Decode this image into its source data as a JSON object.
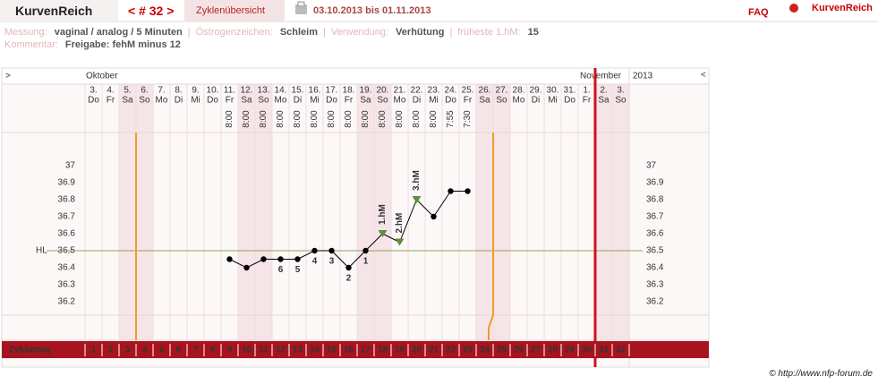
{
  "header": {
    "brand": "KurvenReich",
    "cycle_nav": "< # 32 >",
    "tab": "Zyklenübersicht",
    "date_range": "03.10.2013 bis 01.11.2013",
    "faq": "FAQ",
    "logo_text": "KurvenReich"
  },
  "info": {
    "fields": [
      {
        "label": "Messung:",
        "value": "vaginal / analog / 5 Minuten"
      },
      {
        "label": "Östrogenzeichen:",
        "value": "Schleim"
      },
      {
        "label": "Verwendung:",
        "value": "Verhütung"
      },
      {
        "label": "früheste 1.hM:",
        "value": "15"
      }
    ],
    "comment": {
      "label": "Kommentar:",
      "value": "Freigabe: fehM minus 12"
    }
  },
  "chart_data": {
    "type": "line",
    "nav_prev": ">",
    "nav_next": "<",
    "months": [
      "Oktober",
      "November"
    ],
    "year": "2013",
    "dates": [
      "3.",
      "4.",
      "5.",
      "6.",
      "7.",
      "8.",
      "9.",
      "10.",
      "11.",
      "12.",
      "13.",
      "14.",
      "15.",
      "16.",
      "17.",
      "18.",
      "19.",
      "20.",
      "21.",
      "22.",
      "23.",
      "24.",
      "25.",
      "26.",
      "27.",
      "28.",
      "29.",
      "30.",
      "31.",
      "1.",
      "2.",
      "3."
    ],
    "weekdays": [
      "Do",
      "Fr",
      "Sa",
      "So",
      "Mo",
      "Di",
      "Mi",
      "Do",
      "Fr",
      "Sa",
      "So",
      "Mo",
      "Di",
      "Mi",
      "Do",
      "Fr",
      "Sa",
      "So",
      "Mo",
      "Di",
      "Mi",
      "Do",
      "Fr",
      "Sa",
      "So",
      "Mo",
      "Di",
      "Mi",
      "Do",
      "Fr",
      "Sa",
      "So"
    ],
    "times": [
      null,
      null,
      null,
      null,
      null,
      null,
      null,
      null,
      "8:00",
      "8:00",
      "8:00",
      "8:00",
      "8:00",
      "8:00",
      "8:00",
      "8:00",
      "8:00",
      "8:00",
      "8:00",
      "8:00",
      "8:00",
      "7:55",
      "7:30",
      null,
      null,
      null,
      null,
      null,
      null,
      null,
      null,
      null
    ],
    "values": [
      null,
      null,
      null,
      null,
      null,
      null,
      null,
      null,
      36.45,
      36.4,
      36.45,
      36.45,
      36.45,
      36.5,
      36.5,
      36.4,
      36.5,
      36.6,
      36.55,
      36.8,
      36.7,
      36.85,
      36.85,
      null,
      null,
      null,
      null,
      null,
      null,
      null,
      null,
      null
    ],
    "color": "#000000",
    "count_labels": [
      null,
      null,
      null,
      null,
      null,
      null,
      null,
      null,
      null,
      null,
      null,
      "6",
      "5",
      "4",
      "3",
      "2",
      "1",
      null,
      null,
      null,
      null,
      null,
      null,
      null,
      null,
      null,
      null,
      null,
      null,
      null,
      null,
      null
    ],
    "hm_labels": [
      null,
      null,
      null,
      null,
      null,
      null,
      null,
      null,
      null,
      null,
      null,
      null,
      null,
      null,
      null,
      null,
      null,
      "1.hM",
      "2.hM",
      "3.hM",
      null,
      null,
      null,
      null,
      null,
      null,
      null,
      null,
      null,
      null,
      null,
      null
    ],
    "cycle_label": "Zyklustag",
    "cycle_days": [
      1,
      2,
      3,
      4,
      5,
      6,
      7,
      8,
      9,
      10,
      11,
      12,
      13,
      14,
      15,
      16,
      17,
      18,
      19,
      20,
      21,
      22,
      23,
      24,
      25,
      26,
      27,
      28,
      29,
      30,
      31,
      32
    ],
    "fertile_window": [
      4,
      24
    ],
    "cycle_end": 30,
    "hl": {
      "label": "HL",
      "value": 36.5
    },
    "ylim": [
      36.1,
      37.2
    ],
    "yticks": [
      36.2,
      36.3,
      36.4,
      36.5,
      36.6,
      36.7,
      36.8,
      36.9,
      37
    ]
  },
  "footer": "© http://www.nfp-forum.de"
}
